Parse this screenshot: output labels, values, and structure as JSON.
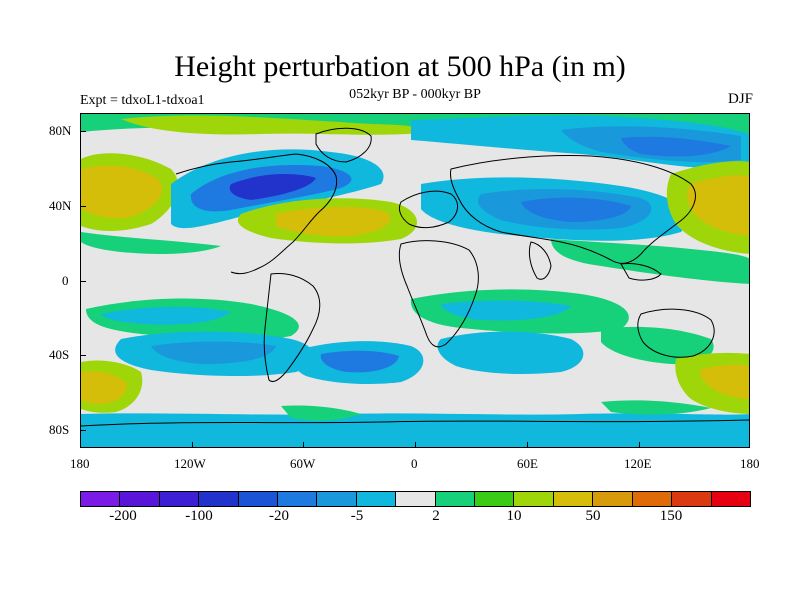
{
  "header": {
    "title": "Height perturbation at 500 hPa (in m)",
    "subtitle": "052kyr BP - 000kyr BP",
    "left": "Expt = tdxoL1-tdxoa1",
    "right": "DJF"
  },
  "axes": {
    "lat_ticks": [
      "80N",
      "40N",
      "0",
      "40S",
      "80S"
    ],
    "lon_ticks": [
      "180",
      "120W",
      "60W",
      "0",
      "60E",
      "120E",
      "180"
    ]
  },
  "colorbar": {
    "colors": [
      "#7a1be6",
      "#5a16d8",
      "#3d1fd4",
      "#2233cc",
      "#1b55d6",
      "#1e7ae0",
      "#1a98dc",
      "#10b8de",
      "#e6e6e6",
      "#17d07a",
      "#3acb16",
      "#9fd60a",
      "#d4be0a",
      "#d79a0a",
      "#df6a08",
      "#db3a10",
      "#e60012"
    ],
    "labels": [
      "-200",
      "-100",
      "-20",
      "-5",
      "2",
      "10",
      "50",
      "150"
    ]
  },
  "palette": {
    "background": "#e6e6e6",
    "coast": "#000000"
  }
}
